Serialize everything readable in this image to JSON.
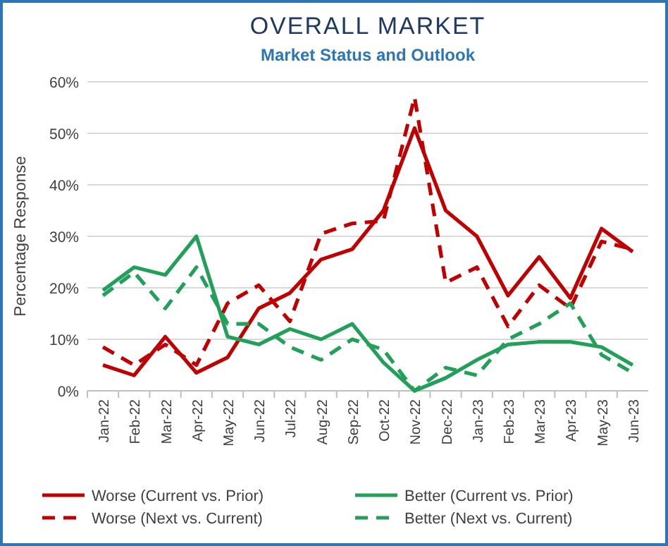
{
  "chart_data": {
    "type": "line",
    "title": "OVERALL MARKET",
    "subtitle": "Market Status and Outlook",
    "ylabel": "Percentage Response",
    "categories": [
      "Jan-22",
      "Feb-22",
      "Mar-22",
      "Apr-22",
      "May-22",
      "Jun-22",
      "Jul-22",
      "Aug-22",
      "Sep-22",
      "Oct-22",
      "Nov-22",
      "Dec-22",
      "Jan-23",
      "Feb-23",
      "Mar-23",
      "Apr-23",
      "May-23",
      "Jun-23"
    ],
    "series": [
      {
        "name": "Worse (Current vs. Prior)",
        "color": "#c00000",
        "line_style": "solid",
        "values": [
          0.05,
          0.03,
          0.105,
          0.035,
          0.065,
          0.16,
          0.19,
          0.255,
          0.275,
          0.35,
          0.51,
          0.35,
          0.3,
          0.185,
          0.26,
          0.18,
          0.315,
          0.27
        ]
      },
      {
        "name": "Better (Current vs. Prior)",
        "color": "#22a05a",
        "line_style": "solid",
        "values": [
          0.195,
          0.24,
          0.225,
          0.3,
          0.105,
          0.09,
          0.12,
          0.1,
          0.13,
          0.055,
          0.0,
          0.025,
          0.06,
          0.09,
          0.095,
          0.095,
          0.085,
          0.05
        ]
      },
      {
        "name": "Worse (Next vs. Current)",
        "color": "#c00000",
        "line_style": "dashed",
        "values": [
          0.085,
          0.05,
          0.09,
          0.05,
          0.17,
          0.205,
          0.135,
          0.305,
          0.325,
          0.33,
          0.57,
          0.21,
          0.24,
          0.125,
          0.205,
          0.16,
          0.29,
          0.275
        ]
      },
      {
        "name": "Better (Next vs. Current)",
        "color": "#22a05a",
        "line_style": "dashed",
        "values": [
          0.185,
          0.23,
          0.16,
          0.24,
          0.13,
          0.13,
          0.085,
          0.06,
          0.1,
          0.08,
          0.0,
          0.045,
          0.03,
          0.1,
          0.13,
          0.17,
          0.07,
          0.035
        ]
      }
    ],
    "ylim": [
      0,
      0.6
    ],
    "yticks": [
      {
        "value": 0,
        "label": "0%"
      },
      {
        "value": 0.1,
        "label": "10%"
      },
      {
        "value": 0.2,
        "label": "20%"
      },
      {
        "value": 0.3,
        "label": "30%"
      },
      {
        "value": 0.4,
        "label": "40%"
      },
      {
        "value": 0.5,
        "label": "50%"
      },
      {
        "value": 0.6,
        "label": "60%"
      }
    ],
    "grid": "y",
    "legend": "bottom",
    "marker": "none"
  }
}
